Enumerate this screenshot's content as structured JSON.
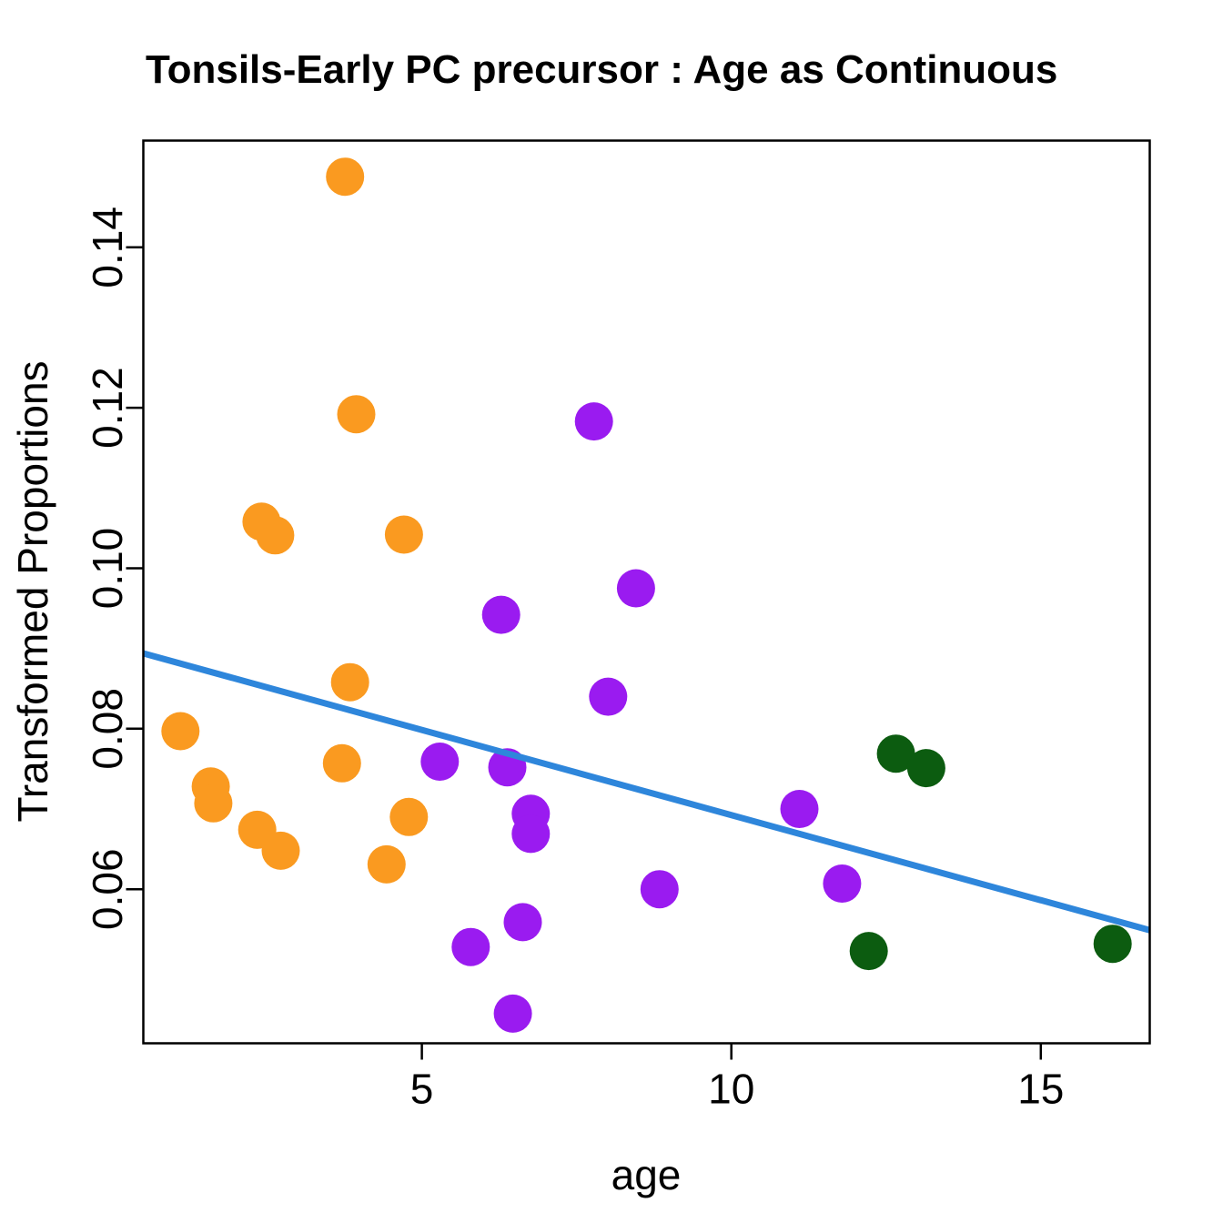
{
  "title": "Tonsils-Early PC precursor : Age as Continuous",
  "chart_data": {
    "type": "scatter",
    "title": "Tonsils-Early PC precursor : Age as Continuous",
    "xlabel": "age",
    "ylabel": "Transformed Proportions",
    "xlim": [
      0.5,
      16.76
    ],
    "ylim": [
      0.0408,
      0.1533
    ],
    "x_ticks": [
      5,
      10,
      15
    ],
    "y_ticks": [
      0.06,
      0.08,
      0.1,
      0.12,
      0.14
    ],
    "grid": false,
    "legend": "none",
    "point_radius_px": 21,
    "axis_color": "#000000",
    "series": [
      {
        "name": "orange-group",
        "color": "#FA9A20",
        "points": [
          [
            3.76,
            0.1488
          ],
          [
            3.94,
            0.1192
          ],
          [
            2.41,
            0.1058
          ],
          [
            2.63,
            0.1041
          ],
          [
            4.71,
            0.1042
          ],
          [
            3.84,
            0.0858
          ],
          [
            1.1,
            0.0797
          ],
          [
            3.71,
            0.0757
          ],
          [
            1.59,
            0.0728
          ],
          [
            1.63,
            0.0707
          ],
          [
            2.34,
            0.0674
          ],
          [
            2.72,
            0.0648
          ],
          [
            4.79,
            0.069
          ],
          [
            4.43,
            0.0631
          ]
        ]
      },
      {
        "name": "purple-group",
        "color": "#9A1BF0",
        "points": [
          [
            7.78,
            0.1183
          ],
          [
            6.28,
            0.0942
          ],
          [
            8.46,
            0.0975
          ],
          [
            8.01,
            0.084
          ],
          [
            5.29,
            0.0759
          ],
          [
            6.38,
            0.0752
          ],
          [
            6.76,
            0.0694
          ],
          [
            6.76,
            0.0669
          ],
          [
            8.84,
            0.06
          ],
          [
            11.1,
            0.07
          ],
          [
            11.79,
            0.0607
          ],
          [
            5.79,
            0.0528
          ],
          [
            6.63,
            0.0559
          ],
          [
            6.47,
            0.0445
          ]
        ]
      },
      {
        "name": "darkgreen-group",
        "color": "#0C5C10",
        "points": [
          [
            12.66,
            0.0769
          ],
          [
            13.15,
            0.0751
          ],
          [
            12.22,
            0.0523
          ],
          [
            16.16,
            0.0532
          ]
        ]
      }
    ],
    "fit_line": {
      "color": "#2E86DB",
      "x1": 0.5,
      "y1": 0.0894,
      "x2": 16.76,
      "y2": 0.0549
    }
  }
}
